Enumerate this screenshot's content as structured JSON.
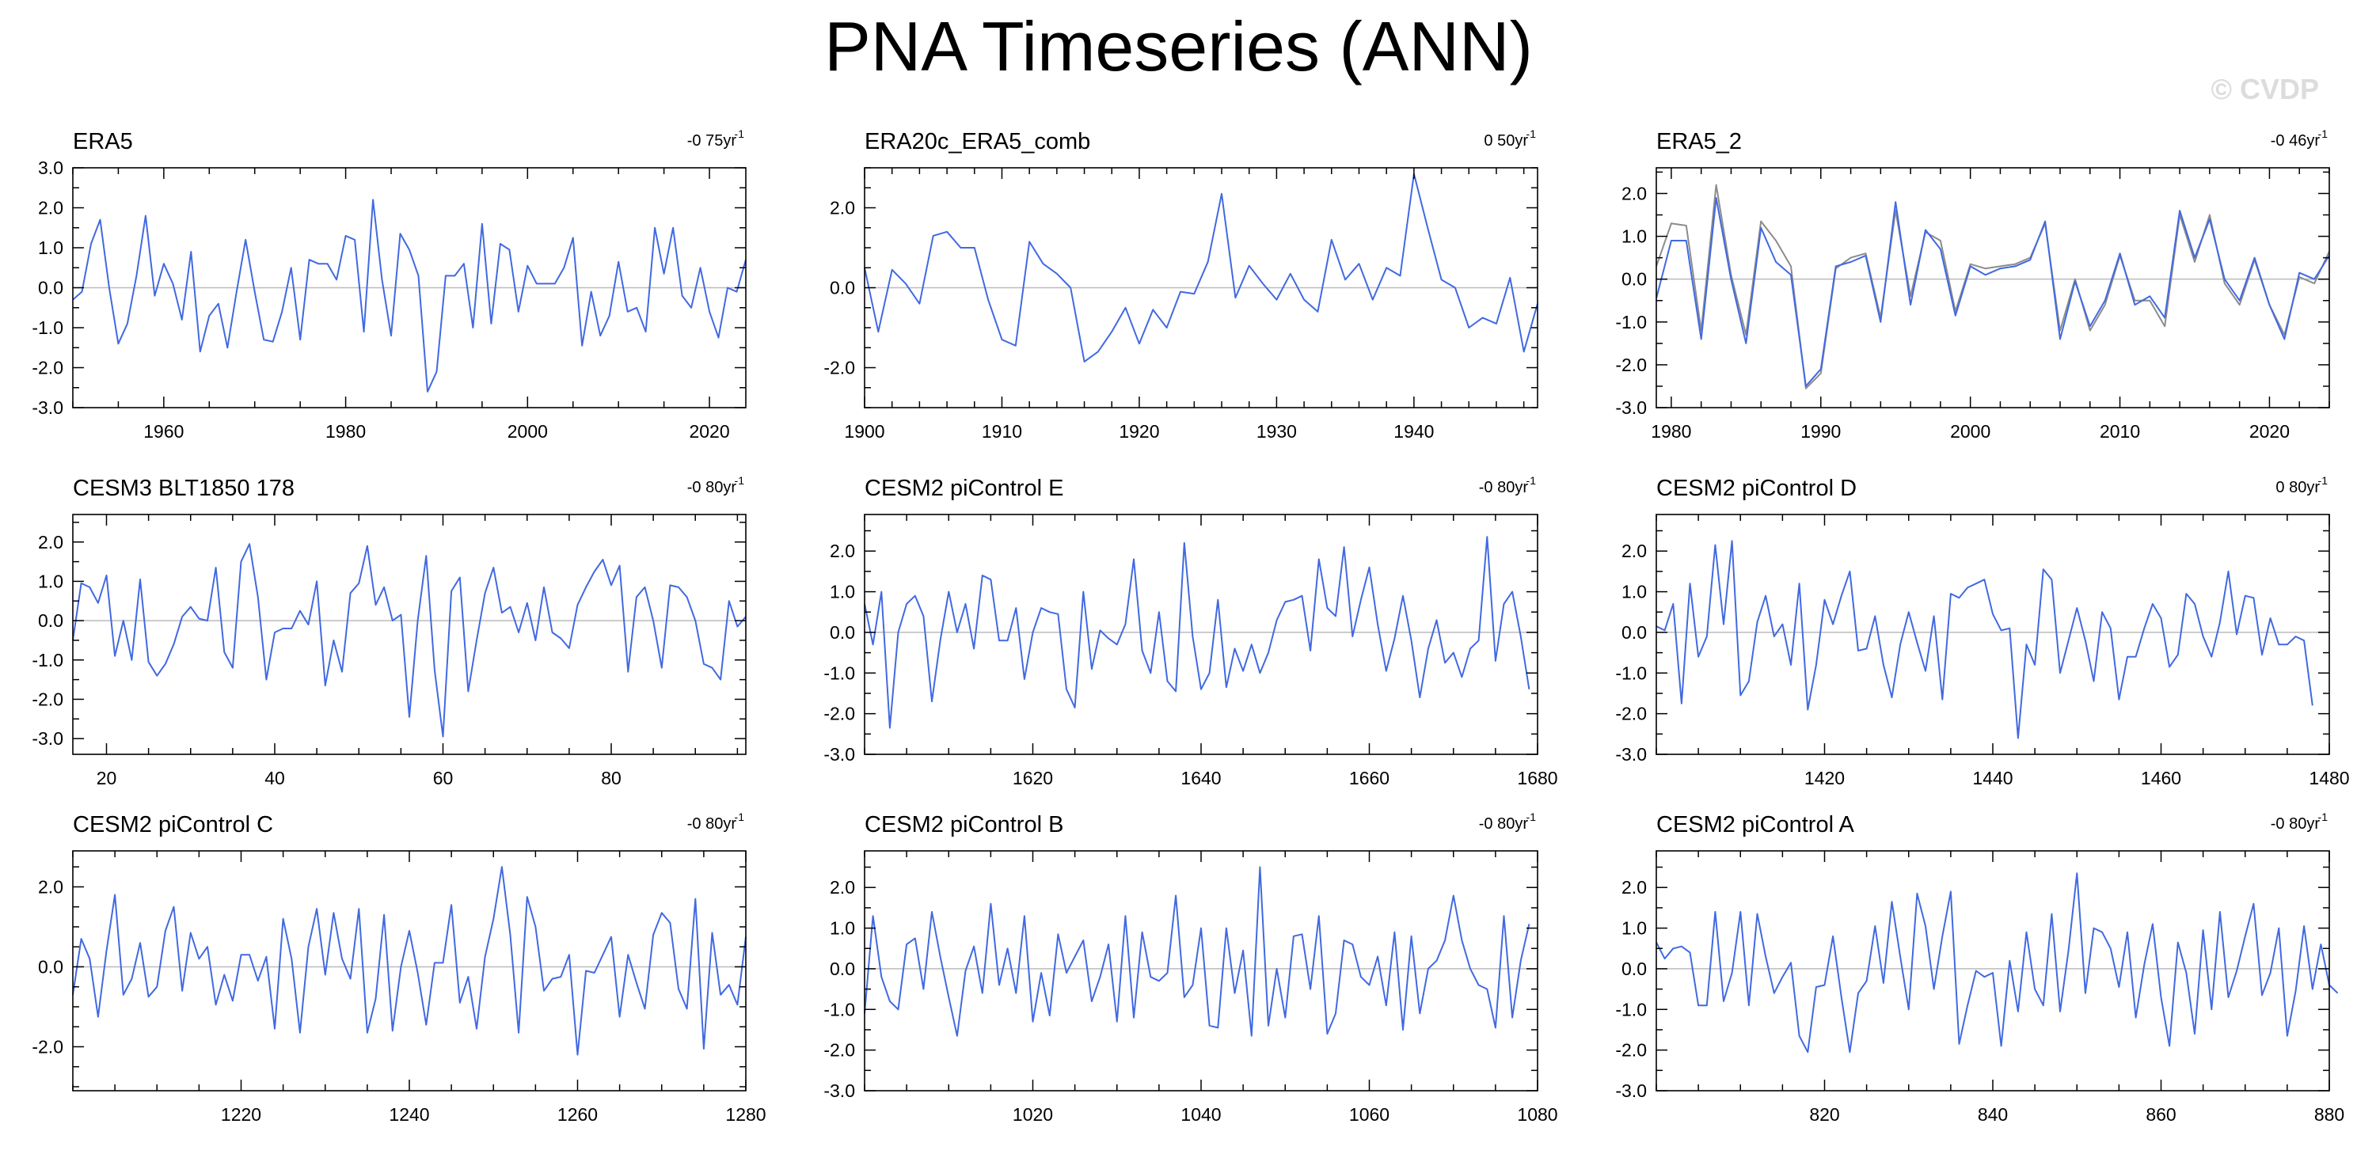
{
  "title": "PNA Timeseries (ANN)",
  "watermark": "© CVDP",
  "colors": {
    "series": "#4169e1",
    "obs_overlay": "#8c8c8c",
    "zero_line": "#bbbbbb",
    "axis": "#000000"
  },
  "chart_data": [
    {
      "type": "line",
      "title": "ERA5",
      "trend": "-0 75yr",
      "xlim": [
        1950,
        2024
      ],
      "ylim": [
        -3,
        3
      ],
      "yticks": [
        -3,
        -2,
        -1,
        0,
        1,
        2,
        3
      ],
      "ytick_labels": [
        "-3.0",
        "-2.0",
        "-1.0",
        "0.0",
        "1.0",
        "2.0",
        "3.0"
      ],
      "xticks": [
        1960,
        1980,
        2000,
        2020
      ],
      "x0": 1950,
      "series": [
        {
          "values": [
            -0.3,
            -0.1,
            1.1,
            1.7,
            0.0,
            -1.4,
            -0.9,
            0.3,
            1.8,
            -0.2,
            0.6,
            0.1,
            -0.8,
            0.9,
            -1.6,
            -0.7,
            -0.4,
            -1.5,
            -0.1,
            1.2,
            -0.1,
            -1.3,
            -1.35,
            -0.6,
            0.5,
            -1.3,
            0.7,
            0.6,
            0.6,
            0.2,
            1.3,
            1.2,
            -1.1,
            2.2,
            0.2,
            -1.2,
            1.35,
            0.95,
            0.3,
            -2.6,
            -2.1,
            0.3,
            0.3,
            0.6,
            -1.0,
            1.6,
            -0.9,
            1.1,
            0.95,
            -0.6,
            0.55,
            0.1,
            0.1,
            0.1,
            0.5,
            1.25,
            -1.45,
            -0.1,
            -1.2,
            -0.7,
            0.65,
            -0.6,
            -0.5,
            -1.1,
            1.5,
            0.35,
            1.5,
            -0.2,
            -0.5,
            0.5,
            -0.6,
            -1.25,
            0.0,
            -0.1,
            0.7
          ]
        }
      ]
    },
    {
      "type": "line",
      "title": "ERA20c_ERA5_comb",
      "trend": "0 50yr",
      "xlim": [
        1900,
        1949
      ],
      "ylim": [
        -3,
        3
      ],
      "yticks": [
        -2,
        0,
        2
      ],
      "ytick_labels": [
        "-2.0",
        "0.0",
        "2.0"
      ],
      "xticks": [
        1900,
        1910,
        1920,
        1930,
        1940
      ],
      "x0": 1900,
      "series": [
        {
          "values": [
            0.5,
            -1.1,
            0.45,
            0.1,
            -0.4,
            1.3,
            1.4,
            1.0,
            1.0,
            -0.3,
            -1.3,
            -1.45,
            1.15,
            0.6,
            0.35,
            0.0,
            -1.85,
            -1.6,
            -1.1,
            -0.5,
            -1.4,
            -0.55,
            -1.0,
            -0.1,
            -0.15,
            0.65,
            2.35,
            -0.25,
            0.55,
            0.1,
            -0.3,
            0.35,
            -0.3,
            -0.6,
            1.2,
            0.2,
            0.6,
            -0.3,
            0.5,
            0.3,
            2.85,
            1.5,
            0.2,
            0.0,
            -1.0,
            -0.75,
            -0.9,
            0.25,
            -1.6,
            -0.4
          ]
        }
      ]
    },
    {
      "type": "line",
      "title": "ERA5_2",
      "trend": "-0 46yr",
      "xlim": [
        1979,
        2024
      ],
      "ylim": [
        -3,
        2.6
      ],
      "yticks": [
        -3,
        -2,
        -1,
        0,
        1,
        2
      ],
      "ytick_labels": [
        "-3.0",
        "-2.0",
        "-1.0",
        "0.0",
        "1.0",
        "2.0"
      ],
      "xticks": [
        1980,
        1990,
        2000,
        2010,
        2020
      ],
      "x0": 1979,
      "series": [
        {
          "values": [
            -0.45,
            0.9,
            0.9,
            -1.4,
            1.9,
            0.0,
            -1.5,
            1.2,
            0.4,
            0.1,
            -2.5,
            -2.1,
            0.3,
            0.4,
            0.55,
            -1.0,
            1.8,
            -0.6,
            1.15,
            0.7,
            -0.85,
            0.3,
            0.1,
            0.25,
            0.3,
            0.45,
            1.35,
            -1.4,
            -0.05,
            -1.1,
            -0.5,
            0.6,
            -0.6,
            -0.4,
            -0.9,
            1.6,
            0.5,
            1.4,
            0.0,
            -0.5,
            0.5,
            -0.6,
            -1.4,
            0.15,
            0.0,
            0.55
          ]
        },
        {
          "values": [
            0.3,
            1.3,
            1.25,
            -1.2,
            2.2,
            0.1,
            -1.3,
            1.35,
            0.9,
            0.3,
            -2.55,
            -2.2,
            0.25,
            0.5,
            0.6,
            -0.9,
            1.6,
            -0.4,
            1.1,
            0.9,
            -0.75,
            0.35,
            0.25,
            0.3,
            0.35,
            0.5,
            1.3,
            -1.2,
            0.0,
            -1.2,
            -0.6,
            0.55,
            -0.5,
            -0.5,
            -1.1,
            1.5,
            0.4,
            1.5,
            -0.1,
            -0.6,
            0.45,
            -0.6,
            -1.3,
            0.05,
            -0.1,
            0.65
          ]
        }
      ]
    },
    {
      "type": "line",
      "title": "CESM3 BLT1850 178",
      "trend": "-0 80yr",
      "xlim": [
        16,
        96
      ],
      "ylim": [
        -3.4,
        2.7
      ],
      "yticks": [
        -3,
        -2,
        -1,
        0,
        1,
        2
      ],
      "ytick_labels": [
        "-3.0",
        "-2.0",
        "-1.0",
        "0.0",
        "1.0",
        "2.0"
      ],
      "xticks": [
        20,
        40,
        60,
        80
      ],
      "x0": 16,
      "series": [
        {
          "values": [
            -0.5,
            0.95,
            0.85,
            0.45,
            1.15,
            -0.9,
            0.0,
            -1.0,
            1.05,
            -1.05,
            -1.4,
            -1.1,
            -0.6,
            0.1,
            0.35,
            0.05,
            0.0,
            1.35,
            -0.8,
            -1.2,
            1.5,
            1.95,
            0.6,
            -1.5,
            -0.3,
            -0.2,
            -0.2,
            0.25,
            -0.1,
            1.0,
            -1.65,
            -0.5,
            -1.3,
            0.7,
            0.95,
            1.9,
            0.4,
            0.85,
            0.0,
            0.15,
            -2.45,
            0.0,
            1.65,
            -1.25,
            -2.95,
            0.75,
            1.1,
            -1.8,
            -0.5,
            0.7,
            1.35,
            0.2,
            0.35,
            -0.3,
            0.45,
            -0.5,
            0.85,
            -0.3,
            -0.45,
            -0.7,
            0.4,
            0.85,
            1.25,
            1.55,
            0.9,
            1.4,
            -1.3,
            0.6,
            0.85,
            0.0,
            -1.2,
            0.9,
            0.85,
            0.6,
            0.0,
            -1.1,
            -1.2,
            -1.5,
            0.5,
            -0.15,
            0.1
          ]
        }
      ]
    },
    {
      "type": "line",
      "title": "CESM2 piControl E",
      "trend": "-0 80yr",
      "xlim": [
        1600,
        1680
      ],
      "ylim": [
        -3,
        2.9
      ],
      "yticks": [
        -3,
        -2,
        -1,
        0,
        1,
        2
      ],
      "ytick_labels": [
        "-3.0",
        "-2.0",
        "-1.0",
        "0.0",
        "1.0",
        "2.0"
      ],
      "xticks": [
        1620,
        1640,
        1660,
        1680
      ],
      "x0": 1600,
      "series": [
        {
          "values": [
            0.7,
            -0.3,
            1.0,
            -2.35,
            0.0,
            0.7,
            0.9,
            0.4,
            -1.7,
            -0.2,
            1.0,
            0.0,
            0.7,
            -0.4,
            1.4,
            1.3,
            -0.2,
            -0.2,
            0.6,
            -1.15,
            0.0,
            0.6,
            0.5,
            0.45,
            -1.4,
            -1.85,
            1.0,
            -0.9,
            0.05,
            -0.15,
            -0.3,
            0.2,
            1.8,
            -0.45,
            -1.0,
            0.5,
            -1.2,
            -1.45,
            2.2,
            -0.1,
            -1.4,
            -1.0,
            0.8,
            -1.35,
            -0.4,
            -0.95,
            -0.3,
            -1.0,
            -0.5,
            0.3,
            0.75,
            0.8,
            0.9,
            -0.45,
            1.8,
            0.6,
            0.4,
            2.1,
            -0.1,
            0.8,
            1.6,
            0.2,
            -0.95,
            -0.15,
            0.9,
            -0.2,
            -1.6,
            -0.4,
            0.3,
            -0.75,
            -0.5,
            -1.1,
            -0.4,
            -0.2,
            2.35,
            -0.7,
            0.7,
            1.0,
            -0.1,
            -1.4
          ]
        }
      ]
    },
    {
      "type": "line",
      "title": "CESM2 piControl D",
      "trend": "0 80yr",
      "xlim": [
        1400,
        1480
      ],
      "ylim": [
        -3,
        2.9
      ],
      "yticks": [
        -3,
        -2,
        -1,
        0,
        1,
        2
      ],
      "ytick_labels": [
        "-3.0",
        "-2.0",
        "-1.0",
        "0.0",
        "1.0",
        "2.0"
      ],
      "xticks": [
        1420,
        1440,
        1460,
        1480
      ],
      "x0": 1400,
      "series": [
        {
          "values": [
            0.15,
            0.05,
            0.7,
            -1.75,
            1.2,
            -0.6,
            -0.1,
            2.15,
            0.2,
            2.25,
            -1.55,
            -1.2,
            0.25,
            0.9,
            -0.1,
            0.2,
            -0.8,
            1.2,
            -1.9,
            -0.8,
            0.8,
            0.2,
            0.9,
            1.5,
            -0.45,
            -0.4,
            0.4,
            -0.8,
            -1.6,
            -0.3,
            0.5,
            -0.25,
            -0.95,
            0.4,
            -1.65,
            0.95,
            0.85,
            1.1,
            1.2,
            1.3,
            0.45,
            0.05,
            0.1,
            -2.6,
            -0.3,
            -0.8,
            1.55,
            1.3,
            -1.0,
            -0.2,
            0.6,
            -0.2,
            -1.2,
            0.5,
            0.1,
            -1.65,
            -0.6,
            -0.6,
            0.1,
            0.7,
            0.35,
            -0.85,
            -0.55,
            0.95,
            0.7,
            -0.1,
            -0.6,
            0.25,
            1.5,
            -0.05,
            0.9,
            0.85,
            -0.55,
            0.35,
            -0.3,
            -0.3,
            -0.1,
            -0.2,
            -1.8
          ]
        }
      ]
    },
    {
      "type": "line",
      "title": "CESM2 piControl C",
      "trend": "-0 80yr",
      "xlim": [
        1200,
        1280
      ],
      "ylim": [
        -3.1,
        2.9
      ],
      "yticks": [
        -2,
        0,
        2
      ],
      "ytick_labels": [
        "-2.0",
        "0.0",
        "2.0"
      ],
      "xticks": [
        1220,
        1240,
        1260,
        1280
      ],
      "x0": 1200,
      "series": [
        {
          "values": [
            -0.7,
            0.7,
            0.2,
            -1.25,
            0.4,
            1.8,
            -0.7,
            -0.3,
            0.6,
            -0.75,
            -0.5,
            0.9,
            1.5,
            -0.6,
            0.85,
            0.2,
            0.5,
            -0.95,
            -0.2,
            -0.85,
            0.3,
            0.3,
            -0.35,
            0.25,
            -1.55,
            1.2,
            0.2,
            -1.65,
            0.5,
            1.45,
            -0.2,
            1.35,
            0.2,
            -0.3,
            1.45,
            -1.65,
            -0.8,
            1.3,
            -1.6,
            0.0,
            0.9,
            -0.15,
            -1.45,
            0.1,
            0.1,
            1.55,
            -0.9,
            -0.25,
            -1.55,
            0.25,
            1.2,
            2.5,
            0.8,
            -1.65,
            1.75,
            1.0,
            -0.6,
            -0.3,
            -0.25,
            0.3,
            -2.2,
            -0.1,
            -0.15,
            0.3,
            0.75,
            -1.25,
            0.3,
            -0.4,
            -1.05,
            0.8,
            1.35,
            1.1,
            -0.55,
            -1.05,
            1.7,
            -2.05,
            0.85,
            -0.7,
            -0.45,
            -0.95,
            0.75
          ]
        }
      ]
    },
    {
      "type": "line",
      "title": "CESM2 piControl B",
      "trend": "-0 80yr",
      "xlim": [
        1000,
        1080
      ],
      "ylim": [
        -3,
        2.9
      ],
      "yticks": [
        -3,
        -2,
        -1,
        0,
        1,
        2
      ],
      "ytick_labels": [
        "-3.0",
        "-2.0",
        "-1.0",
        "0.0",
        "1.0",
        "2.0"
      ],
      "xticks": [
        1020,
        1040,
        1060,
        1080
      ],
      "x0": 1000,
      "series": [
        {
          "values": [
            -1.1,
            1.3,
            -0.2,
            -0.8,
            -1.0,
            0.6,
            0.75,
            -0.5,
            1.4,
            0.3,
            -0.7,
            -1.65,
            -0.05,
            0.55,
            -0.6,
            1.6,
            -0.4,
            0.5,
            -0.6,
            1.3,
            -1.3,
            -0.1,
            -1.15,
            0.85,
            -0.1,
            0.3,
            0.7,
            -0.8,
            -0.2,
            0.6,
            -1.3,
            1.3,
            -1.2,
            0.9,
            -0.2,
            -0.3,
            -0.1,
            1.8,
            -0.7,
            -0.4,
            1.0,
            -1.4,
            -1.45,
            1.0,
            -0.6,
            0.45,
            -1.65,
            2.5,
            -1.4,
            0.0,
            -1.2,
            0.8,
            0.85,
            -0.5,
            1.3,
            -1.6,
            -1.1,
            0.7,
            0.6,
            -0.2,
            -0.4,
            0.3,
            -0.9,
            0.9,
            -1.5,
            0.8,
            -1.1,
            0.0,
            0.2,
            0.7,
            1.8,
            0.7,
            0.0,
            -0.4,
            -0.5,
            -1.45,
            1.3,
            -1.2,
            0.2,
            1.1
          ]
        }
      ]
    },
    {
      "type": "line",
      "title": "CESM2 piControl A",
      "trend": "-0 80yr",
      "xlim": [
        800,
        880
      ],
      "ylim": [
        -3,
        2.9
      ],
      "yticks": [
        -3,
        -2,
        -1,
        0,
        1,
        2
      ],
      "ytick_labels": [
        "-3.0",
        "-2.0",
        "-1.0",
        "0.0",
        "1.0",
        "2.0"
      ],
      "xticks": [
        820,
        840,
        860,
        880
      ],
      "x0": 800,
      "series": [
        {
          "values": [
            0.65,
            0.25,
            0.5,
            0.55,
            0.4,
            -0.9,
            -0.9,
            1.4,
            -0.8,
            -0.1,
            1.4,
            -0.9,
            1.35,
            0.3,
            -0.6,
            -0.2,
            0.15,
            -1.65,
            -2.05,
            -0.45,
            -0.4,
            0.8,
            -0.7,
            -2.05,
            -0.6,
            -0.3,
            1.05,
            -0.35,
            1.65,
            0.3,
            -1.0,
            1.85,
            1.05,
            -0.5,
            0.8,
            1.9,
            -1.85,
            -0.9,
            -0.05,
            -0.2,
            -0.1,
            -1.9,
            0.2,
            -1.05,
            0.9,
            -0.5,
            -0.9,
            1.35,
            -1.05,
            0.45,
            2.35,
            -0.6,
            1.0,
            0.9,
            0.5,
            -0.45,
            0.9,
            -1.2,
            0.1,
            1.1,
            -0.7,
            -1.9,
            0.65,
            -0.1,
            -1.6,
            0.95,
            -1.0,
            1.4,
            -0.7,
            -0.05,
            0.8,
            1.6,
            -0.65,
            -0.1,
            1.0,
            -1.65,
            -0.55,
            1.05,
            -0.5,
            0.6,
            -0.4,
            -0.6
          ]
        }
      ]
    }
  ]
}
